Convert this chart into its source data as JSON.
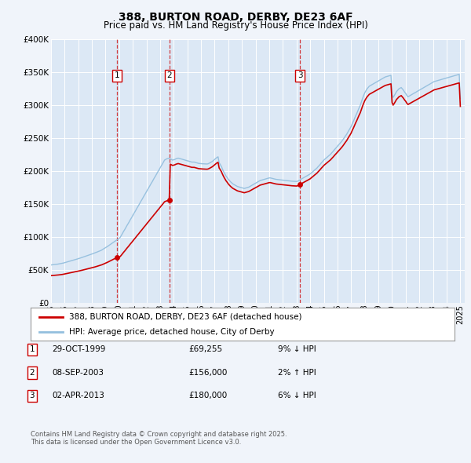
{
  "title": "388, BURTON ROAD, DERBY, DE23 6AF",
  "subtitle": "Price paid vs. HM Land Registry's House Price Index (HPI)",
  "legend_line1": "388, BURTON ROAD, DERBY, DE23 6AF (detached house)",
  "legend_line2": "HPI: Average price, detached house, City of Derby",
  "footnote1": "Contains HM Land Registry data © Crown copyright and database right 2025.",
  "footnote2": "This data is licensed under the Open Government Licence v3.0.",
  "sale_color": "#cc0000",
  "hpi_color": "#94bfde",
  "background_color": "#f0f4fa",
  "plot_bg_color": "#dce8f5",
  "grid_color": "#ffffff",
  "ylim": [
    0,
    400000
  ],
  "yticks": [
    0,
    50000,
    100000,
    150000,
    200000,
    250000,
    300000,
    350000,
    400000
  ],
  "ytick_labels": [
    "£0",
    "£50K",
    "£100K",
    "£150K",
    "£200K",
    "£250K",
    "£300K",
    "£350K",
    "£400K"
  ],
  "purchases": [
    {
      "date_num": 1999.83,
      "price": 69255,
      "label": "1"
    },
    {
      "date_num": 2003.69,
      "price": 156000,
      "label": "2"
    },
    {
      "date_num": 2013.25,
      "price": 180000,
      "label": "3"
    }
  ],
  "vline_dates": [
    1999.83,
    2003.69,
    2013.25
  ],
  "table_rows": [
    {
      "num": "1",
      "date": "29-OCT-1999",
      "price": "£69,255",
      "change": "9% ↓ HPI"
    },
    {
      "num": "2",
      "date": "08-SEP-2003",
      "price": "£156,000",
      "change": "2% ↑ HPI"
    },
    {
      "num": "3",
      "date": "02-APR-2013",
      "price": "£180,000",
      "change": "6% ↓ HPI"
    }
  ],
  "hpi_x": [
    1995.0,
    1995.08,
    1995.17,
    1995.25,
    1995.33,
    1995.42,
    1995.5,
    1995.58,
    1995.67,
    1995.75,
    1995.83,
    1995.92,
    1996.0,
    1996.08,
    1996.17,
    1996.25,
    1996.33,
    1996.42,
    1996.5,
    1996.58,
    1996.67,
    1996.75,
    1996.83,
    1996.92,
    1997.0,
    1997.08,
    1997.17,
    1997.25,
    1997.33,
    1997.42,
    1997.5,
    1997.58,
    1997.67,
    1997.75,
    1997.83,
    1997.92,
    1998.0,
    1998.08,
    1998.17,
    1998.25,
    1998.33,
    1998.42,
    1998.5,
    1998.58,
    1998.67,
    1998.75,
    1998.83,
    1998.92,
    1999.0,
    1999.08,
    1999.17,
    1999.25,
    1999.33,
    1999.42,
    1999.5,
    1999.58,
    1999.67,
    1999.75,
    1999.83,
    1999.92,
    2000.0,
    2000.08,
    2000.17,
    2000.25,
    2000.33,
    2000.42,
    2000.5,
    2000.58,
    2000.67,
    2000.75,
    2000.83,
    2000.92,
    2001.0,
    2001.08,
    2001.17,
    2001.25,
    2001.33,
    2001.42,
    2001.5,
    2001.58,
    2001.67,
    2001.75,
    2001.83,
    2001.92,
    2002.0,
    2002.08,
    2002.17,
    2002.25,
    2002.33,
    2002.42,
    2002.5,
    2002.58,
    2002.67,
    2002.75,
    2002.83,
    2002.92,
    2003.0,
    2003.08,
    2003.17,
    2003.25,
    2003.33,
    2003.42,
    2003.5,
    2003.58,
    2003.67,
    2003.75,
    2003.83,
    2003.92,
    2004.0,
    2004.08,
    2004.17,
    2004.25,
    2004.33,
    2004.42,
    2004.5,
    2004.58,
    2004.67,
    2004.75,
    2004.83,
    2004.92,
    2005.0,
    2005.08,
    2005.17,
    2005.25,
    2005.33,
    2005.42,
    2005.5,
    2005.58,
    2005.67,
    2005.75,
    2005.83,
    2005.92,
    2006.0,
    2006.08,
    2006.17,
    2006.25,
    2006.33,
    2006.42,
    2006.5,
    2006.58,
    2006.67,
    2006.75,
    2006.83,
    2006.92,
    2007.0,
    2007.08,
    2007.17,
    2007.25,
    2007.33,
    2007.42,
    2007.5,
    2007.58,
    2007.67,
    2007.75,
    2007.83,
    2007.92,
    2008.0,
    2008.08,
    2008.17,
    2008.25,
    2008.33,
    2008.42,
    2008.5,
    2008.58,
    2008.67,
    2008.75,
    2008.83,
    2008.92,
    2009.0,
    2009.08,
    2009.17,
    2009.25,
    2009.33,
    2009.42,
    2009.5,
    2009.58,
    2009.67,
    2009.75,
    2009.83,
    2009.92,
    2010.0,
    2010.08,
    2010.17,
    2010.25,
    2010.33,
    2010.42,
    2010.5,
    2010.58,
    2010.67,
    2010.75,
    2010.83,
    2010.92,
    2011.0,
    2011.08,
    2011.17,
    2011.25,
    2011.33,
    2011.42,
    2011.5,
    2011.58,
    2011.67,
    2011.75,
    2011.83,
    2011.92,
    2012.0,
    2012.08,
    2012.17,
    2012.25,
    2012.33,
    2012.42,
    2012.5,
    2012.58,
    2012.67,
    2012.75,
    2012.83,
    2012.92,
    2013.0,
    2013.08,
    2013.17,
    2013.25,
    2013.33,
    2013.42,
    2013.5,
    2013.58,
    2013.67,
    2013.75,
    2013.83,
    2013.92,
    2014.0,
    2014.08,
    2014.17,
    2014.25,
    2014.33,
    2014.42,
    2014.5,
    2014.58,
    2014.67,
    2014.75,
    2014.83,
    2014.92,
    2015.0,
    2015.08,
    2015.17,
    2015.25,
    2015.33,
    2015.42,
    2015.5,
    2015.58,
    2015.67,
    2015.75,
    2015.83,
    2015.92,
    2016.0,
    2016.08,
    2016.17,
    2016.25,
    2016.33,
    2016.42,
    2016.5,
    2016.58,
    2016.67,
    2016.75,
    2016.83,
    2016.92,
    2017.0,
    2017.08,
    2017.17,
    2017.25,
    2017.33,
    2017.42,
    2017.5,
    2017.58,
    2017.67,
    2017.75,
    2017.83,
    2017.92,
    2018.0,
    2018.08,
    2018.17,
    2018.25,
    2018.33,
    2018.42,
    2018.5,
    2018.58,
    2018.67,
    2018.75,
    2018.83,
    2018.92,
    2019.0,
    2019.08,
    2019.17,
    2019.25,
    2019.33,
    2019.42,
    2019.5,
    2019.58,
    2019.67,
    2019.75,
    2019.83,
    2019.92,
    2020.0,
    2020.08,
    2020.17,
    2020.25,
    2020.33,
    2020.42,
    2020.5,
    2020.58,
    2020.67,
    2020.75,
    2020.83,
    2020.92,
    2021.0,
    2021.08,
    2021.17,
    2021.25,
    2021.33,
    2021.42,
    2021.5,
    2021.58,
    2021.67,
    2021.75,
    2021.83,
    2021.92,
    2022.0,
    2022.08,
    2022.17,
    2022.25,
    2022.33,
    2022.42,
    2022.5,
    2022.58,
    2022.67,
    2022.75,
    2022.83,
    2022.92,
    2023.0,
    2023.08,
    2023.17,
    2023.25,
    2023.33,
    2023.42,
    2023.5,
    2023.58,
    2023.67,
    2023.75,
    2023.83,
    2023.92,
    2024.0,
    2024.08,
    2024.17,
    2024.25,
    2024.33,
    2024.42,
    2024.5,
    2024.58,
    2024.67,
    2024.75,
    2024.83,
    2024.92,
    2025.0
  ],
  "hpi_y": [
    58000,
    58200,
    58400,
    58600,
    58800,
    59000,
    59300,
    59600,
    59900,
    60200,
    60500,
    61000,
    61500,
    62000,
    62500,
    63000,
    63500,
    64000,
    64500,
    65000,
    65500,
    66000,
    66500,
    67000,
    67500,
    68000,
    68600,
    69200,
    69800,
    70400,
    71000,
    71600,
    72200,
    72800,
    73400,
    74000,
    74600,
    75200,
    75800,
    76500,
    77200,
    77900,
    78600,
    79300,
    80000,
    81000,
    82000,
    83000,
    84000,
    85200,
    86400,
    87600,
    88800,
    90000,
    91200,
    92400,
    93600,
    94800,
    96000,
    97000,
    98000,
    100000,
    103000,
    106000,
    109000,
    112000,
    115000,
    118000,
    121000,
    124000,
    127000,
    130000,
    133000,
    136000,
    139000,
    142000,
    145000,
    148000,
    151000,
    154000,
    157000,
    160000,
    163000,
    166000,
    169000,
    172000,
    175000,
    178000,
    181000,
    184000,
    187000,
    190000,
    193000,
    196000,
    199000,
    202000,
    205000,
    208000,
    211000,
    214000,
    217000,
    218000,
    219000,
    219500,
    220000,
    219000,
    218000,
    217000,
    217500,
    218000,
    219000,
    219500,
    220000,
    219500,
    219000,
    218500,
    218000,
    217500,
    217000,
    216500,
    216000,
    215500,
    215000,
    214500,
    214000,
    214000,
    214000,
    213500,
    213000,
    212500,
    212000,
    211800,
    211600,
    211500,
    211400,
    211300,
    211200,
    211100,
    211300,
    212000,
    213000,
    214000,
    215000,
    216500,
    218000,
    219500,
    221000,
    222000,
    213000,
    210000,
    207000,
    203000,
    199000,
    196000,
    193000,
    190500,
    188000,
    186000,
    184000,
    182500,
    181000,
    180000,
    179000,
    178000,
    177000,
    176500,
    176000,
    175500,
    175000,
    174500,
    174000,
    174500,
    175000,
    175500,
    176000,
    177000,
    178000,
    179000,
    180000,
    181000,
    182000,
    183000,
    184000,
    185000,
    186000,
    186500,
    187000,
    187500,
    188000,
    188500,
    189000,
    189500,
    190000,
    190000,
    189500,
    189000,
    188500,
    188000,
    187800,
    187600,
    187400,
    187200,
    187000,
    186800,
    186600,
    186400,
    186200,
    186000,
    185800,
    185600,
    185400,
    185200,
    185000,
    184900,
    184800,
    184700,
    184600,
    185000,
    186000,
    187000,
    188000,
    189000,
    190000,
    191000,
    192000,
    193000,
    194000,
    195000,
    196000,
    197500,
    199000,
    200500,
    202000,
    203500,
    205000,
    207000,
    209000,
    211000,
    213000,
    215000,
    217000,
    218500,
    220000,
    221500,
    223000,
    224500,
    226000,
    228000,
    230000,
    232000,
    234000,
    236000,
    238000,
    240000,
    242000,
    244000,
    246000,
    248500,
    251000,
    253500,
    256000,
    259000,
    262000,
    265000,
    268000,
    272000,
    276000,
    280000,
    284000,
    288000,
    292000,
    296000,
    300000,
    305000,
    310000,
    315000,
    319000,
    322000,
    325000,
    327000,
    329000,
    330000,
    331000,
    332000,
    333000,
    334000,
    335000,
    336000,
    337000,
    338000,
    339000,
    340000,
    341000,
    342000,
    343000,
    343500,
    344000,
    344500,
    345000,
    345500,
    316000,
    312000,
    315000,
    318000,
    321000,
    323000,
    325000,
    326000,
    327000,
    325000,
    323000,
    320000,
    318000,
    315000,
    313000,
    314000,
    315000,
    316000,
    317000,
    318000,
    319000,
    320000,
    321000,
    322000,
    323000,
    324000,
    325000,
    326000,
    327000,
    328000,
    329000,
    330000,
    331000,
    332000,
    333000,
    334000,
    335000,
    336000,
    336500,
    337000,
    337500,
    338000,
    338500,
    339000,
    339500,
    340000,
    340500,
    341000,
    341500,
    342000,
    342500,
    343000,
    343500,
    344000,
    344500,
    345000,
    345500,
    346000,
    346500,
    347000,
    310000
  ]
}
